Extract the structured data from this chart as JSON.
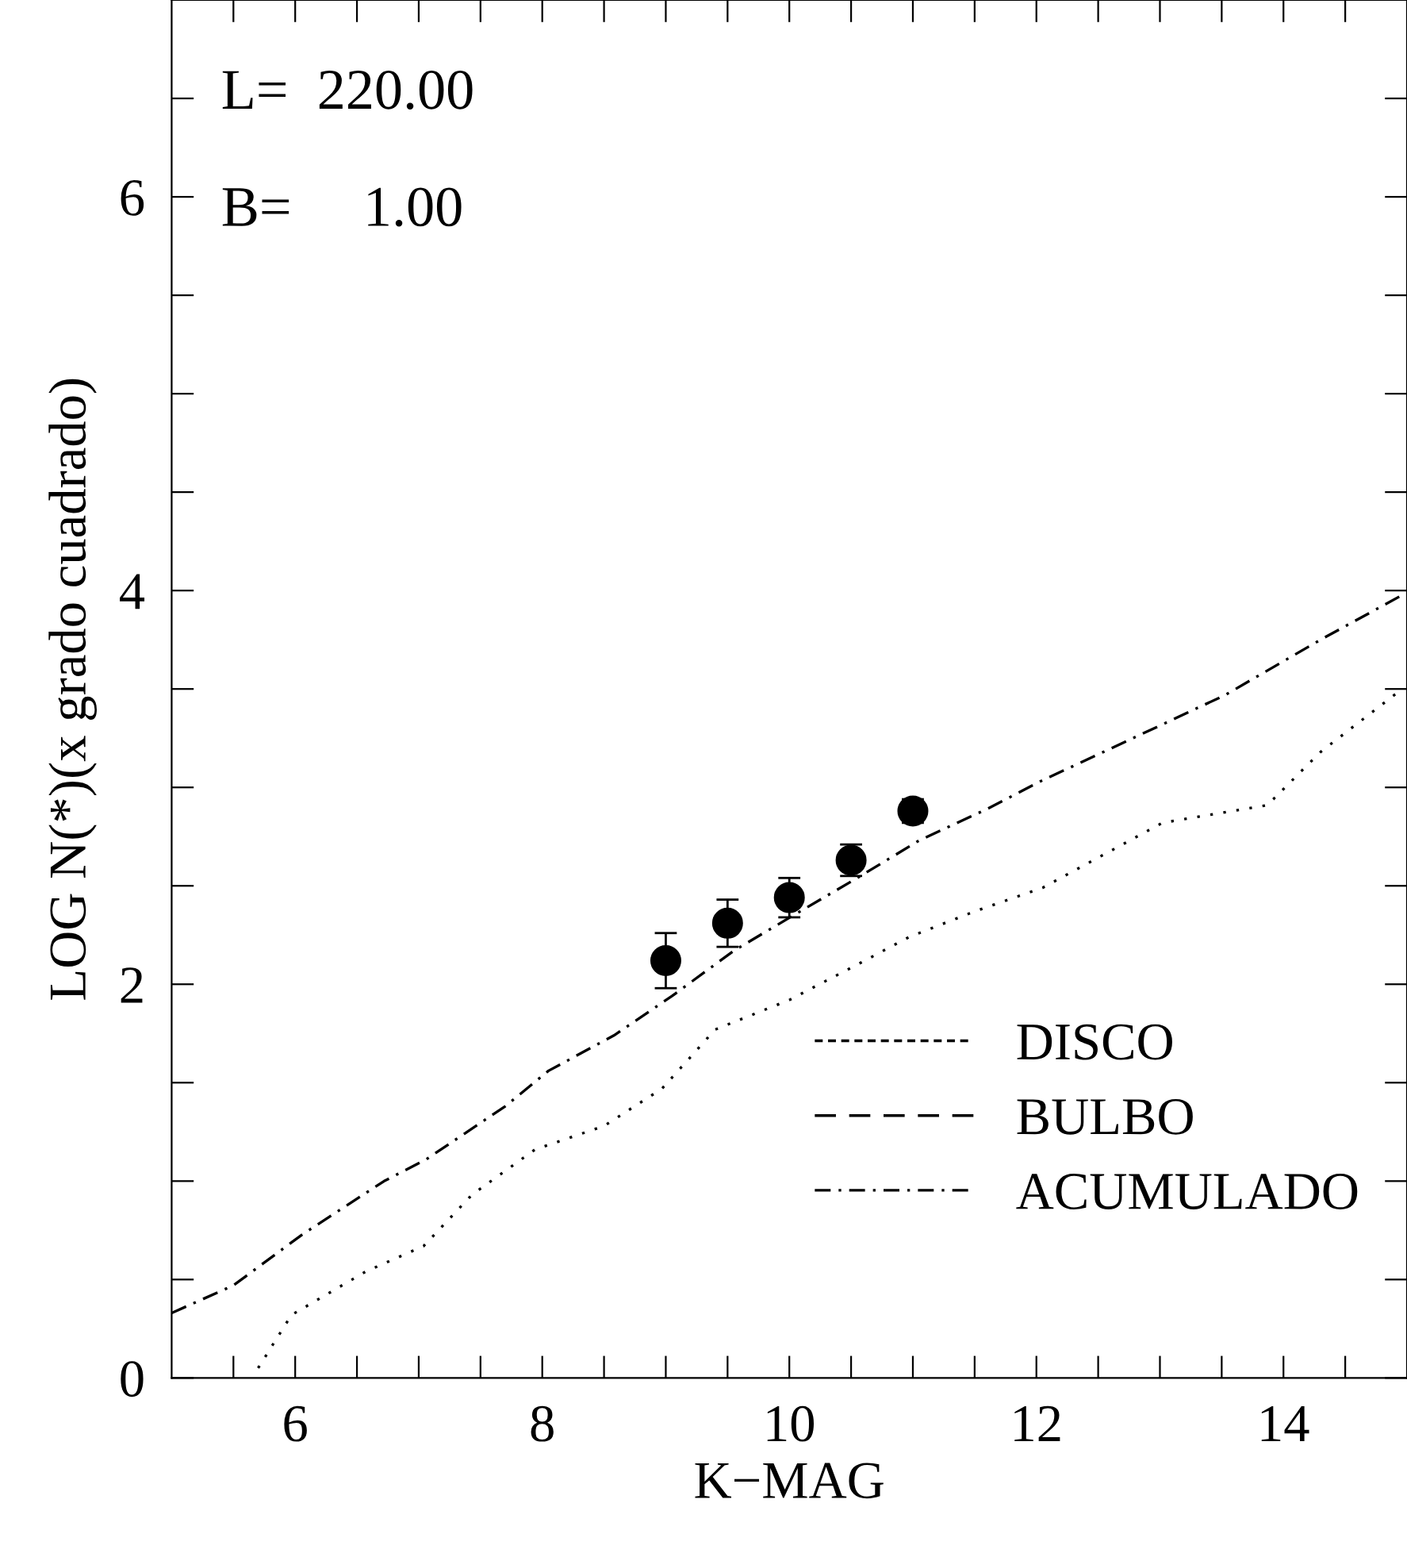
{
  "chart_data": {
    "type": "line",
    "xlabel": "K−MAG",
    "ylabel": "LOG N(*)(x grado cuadrado)",
    "xlim": [
      5,
      15
    ],
    "ylim": [
      0,
      7
    ],
    "xticks": [
      {
        "value": 5.5,
        "label": null
      },
      6,
      {
        "value": 6.5,
        "label": null
      },
      {
        "value": 7,
        "label": null
      },
      {
        "value": 7.5,
        "label": null
      },
      8,
      {
        "value": 8.5,
        "label": null
      },
      {
        "value": 9,
        "label": null
      },
      {
        "value": 9.5,
        "label": null
      },
      10,
      {
        "value": 10.5,
        "label": null
      },
      {
        "value": 11,
        "label": null
      },
      {
        "value": 11.5,
        "label": null
      },
      12,
      {
        "value": 12.5,
        "label": null
      },
      {
        "value": 13,
        "label": null
      },
      {
        "value": 13.5,
        "label": null
      },
      14,
      {
        "value": 14.5,
        "label": null
      }
    ],
    "yticks": [
      0,
      {
        "value": 0.5,
        "label": null
      },
      {
        "value": 1,
        "label": null
      },
      {
        "value": 1.5,
        "label": null
      },
      2,
      {
        "value": 2.5,
        "label": null
      },
      {
        "value": 3,
        "label": null
      },
      {
        "value": 3.5,
        "label": null
      },
      4,
      {
        "value": 4.5,
        "label": null
      },
      {
        "value": 5,
        "label": null
      },
      {
        "value": 5.5,
        "label": null
      },
      6,
      {
        "value": 6.5,
        "label": null
      }
    ],
    "grid": false,
    "legend": "bottom right",
    "annotations": [
      "L=  220.00",
      "B=     1.00"
    ],
    "series": [
      {
        "name": "DISCO",
        "line_style": "dotted",
        "color": "#000000",
        "x": [
          5.7,
          5.97,
          6.57,
          7.04,
          7.43,
          7.94,
          8.5,
          8.97,
          9.4,
          10.0,
          10.55,
          10.97,
          11.5,
          12.05,
          13.02,
          13.87,
          14.3,
          14.94
        ],
        "values": [
          0.05,
          0.32,
          0.54,
          0.67,
          0.93,
          1.16,
          1.28,
          1.47,
          1.77,
          1.92,
          2.1,
          2.24,
          2.37,
          2.49,
          2.82,
          2.91,
          3.18,
          3.49
        ]
      },
      {
        "name": "BULBO",
        "line_style": "dashed",
        "color": "#000000"
      },
      {
        "name": "ACUMULADO",
        "line_style": "dashdot",
        "color": "#000000",
        "x": [
          5.0,
          5.5,
          6.06,
          6.72,
          7.06,
          7.7,
          8.05,
          8.58,
          9.05,
          9.55,
          10.06,
          10.55,
          11.05,
          11.6,
          12.03,
          13.02,
          13.53,
          14.3,
          14.97
        ],
        "values": [
          0.33,
          0.47,
          0.73,
          1.0,
          1.11,
          1.38,
          1.56,
          1.74,
          1.94,
          2.17,
          2.36,
          2.54,
          2.73,
          2.89,
          3.03,
          3.32,
          3.47,
          3.75,
          3.98
        ]
      },
      {
        "type": "scatter",
        "marker": "circle",
        "color": "#000000",
        "x": [
          9,
          9.5,
          10,
          10.5,
          11
        ],
        "values": [
          2.12,
          2.31,
          2.44,
          2.63,
          2.88
        ],
        "errors": [
          0.14,
          0.12,
          0.1,
          0.08,
          0.06
        ]
      }
    ]
  }
}
